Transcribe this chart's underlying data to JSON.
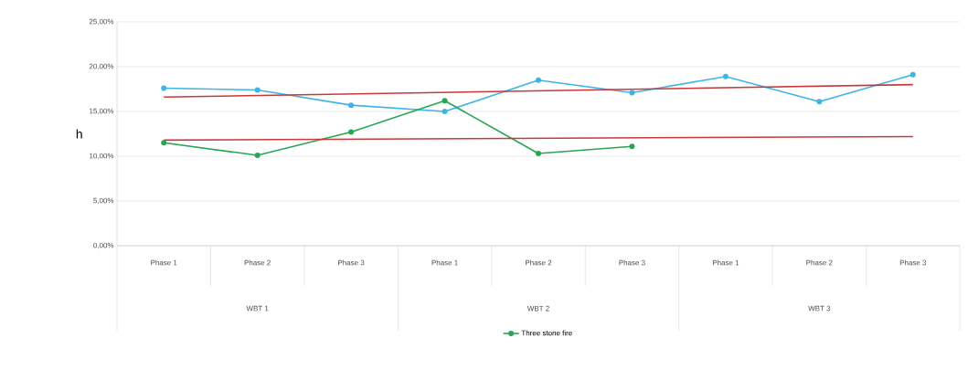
{
  "chart_data": {
    "type": "line",
    "ylabel": "h",
    "categories": [
      "Phase 1",
      "Phase 2",
      "Phase 3",
      "Phase 1",
      "Phase 2",
      "Phase 3",
      "Phase 1",
      "Phase 2",
      "Phase 3"
    ],
    "annotations": [
      "WBT 1",
      "WBT 2",
      "WBT 3"
    ],
    "series": [
      {
        "color": "#3fb4e6",
        "values": [
          17.6,
          17.4,
          15.7,
          15.0,
          18.5,
          17.1,
          18.9,
          16.1,
          19.1
        ]
      },
      {
        "name": "Three stone fire",
        "color": "#2aa552",
        "values": [
          11.5,
          10.1,
          12.7,
          16.2,
          10.3,
          11.1,
          null,
          null,
          null
        ]
      },
      {
        "color": "#c8393b",
        "values": [
          16.6,
          null,
          null,
          null,
          null,
          null,
          null,
          null,
          18.0
        ],
        "marker": "none"
      },
      {
        "color": "#c8393b",
        "values": [
          11.8,
          null,
          null,
          null,
          null,
          null,
          null,
          null,
          12.2
        ],
        "marker": "none"
      }
    ],
    "ylim": [
      0,
      25
    ],
    "yticks": [
      {
        "value": 0,
        "label": "0,00%"
      },
      {
        "value": 5,
        "label": "5,00%"
      },
      {
        "value": 10,
        "label": "10,00%"
      },
      {
        "value": 15,
        "label": "15,00%"
      },
      {
        "value": 20,
        "label": "20,00%"
      },
      {
        "value": 25,
        "label": "25,00%"
      }
    ],
    "grid": "y",
    "legend": "bottom",
    "marker": "circle",
    "line_style": "solid"
  }
}
